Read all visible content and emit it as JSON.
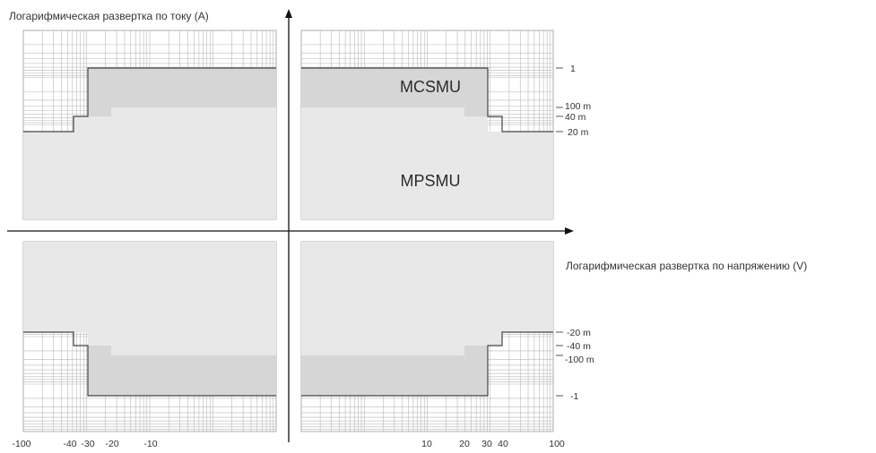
{
  "axes": {
    "current_title": "Логарифмическая развертка по току (A)",
    "voltage_title": "Логарифмическая развертка по напряжению (V)"
  },
  "regions": {
    "mcsmu": "MCSMU",
    "mpsmu": "MPSMU"
  },
  "current_ticks_positive": [
    "1",
    "100 m",
    "40 m",
    "20 m"
  ],
  "current_ticks_negative": [
    "-20 m",
    "-40 m",
    "-100 m",
    "-1"
  ],
  "voltage_ticks_negative": [
    "-100",
    "-40",
    "-30",
    "-20",
    "-10"
  ],
  "voltage_ticks_positive": [
    "10",
    "20",
    "30",
    "40",
    "100"
  ],
  "colors": {
    "mcsmu_fill": "#d6d6d6",
    "mpsmu_fill": "#e8e8e8",
    "grid": "#b8b8b8",
    "outline": "#444444",
    "axis": "#111111"
  }
}
